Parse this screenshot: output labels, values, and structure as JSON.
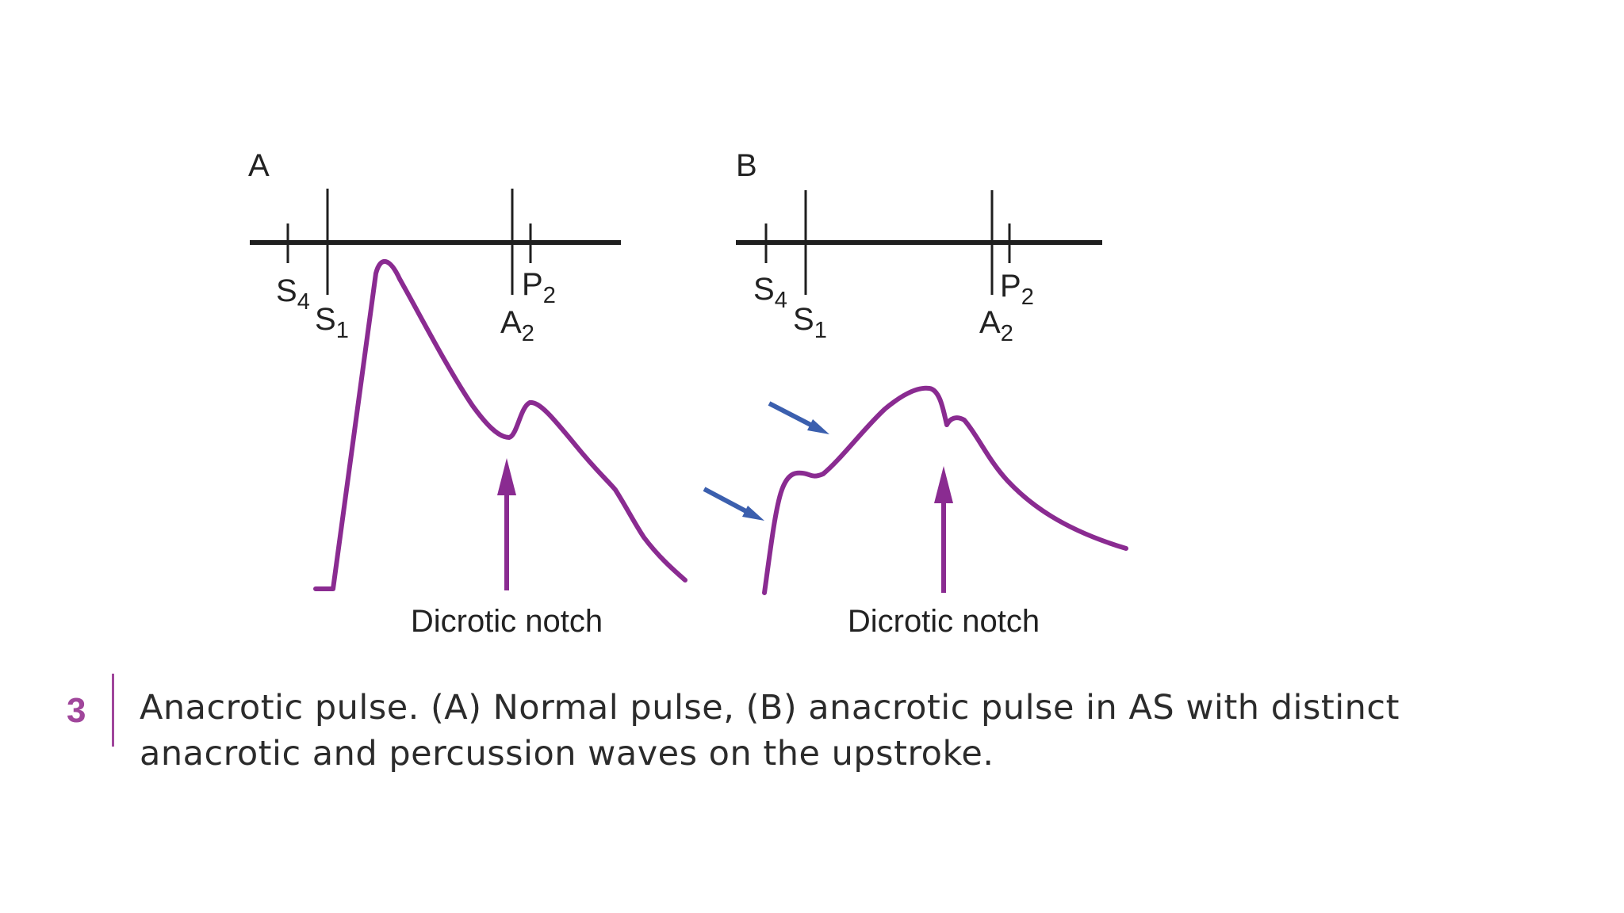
{
  "panels": [
    {
      "id": "A",
      "label": "A",
      "sounds": {
        "s4": "S",
        "s4_sub": "4",
        "s1": "S",
        "s1_sub": "1",
        "a2": "A",
        "a2_sub": "2",
        "p2": "P",
        "p2_sub": "2"
      },
      "annotation": "Dicrotic notch"
    },
    {
      "id": "B",
      "label": "B",
      "sounds": {
        "s4": "S",
        "s4_sub": "4",
        "s1": "S",
        "s1_sub": "1",
        "a2": "A",
        "a2_sub": "2",
        "p2": "P",
        "p2_sub": "2"
      },
      "annotation": "Dicrotic notch"
    }
  ],
  "caption": {
    "number": "3",
    "line1": "Anacrotic pulse. (A) Normal pulse, (B) anacrotic pulse in AS with distinct",
    "line2": "anacrotic and percussion waves on the upstroke."
  },
  "colors": {
    "waveform": "#8a2b91",
    "pointer_arrows": "#3b5fae",
    "timeline": "#1f1f1f",
    "caption_accent": "#a0469b",
    "caption_text": "#2b2b2b"
  }
}
